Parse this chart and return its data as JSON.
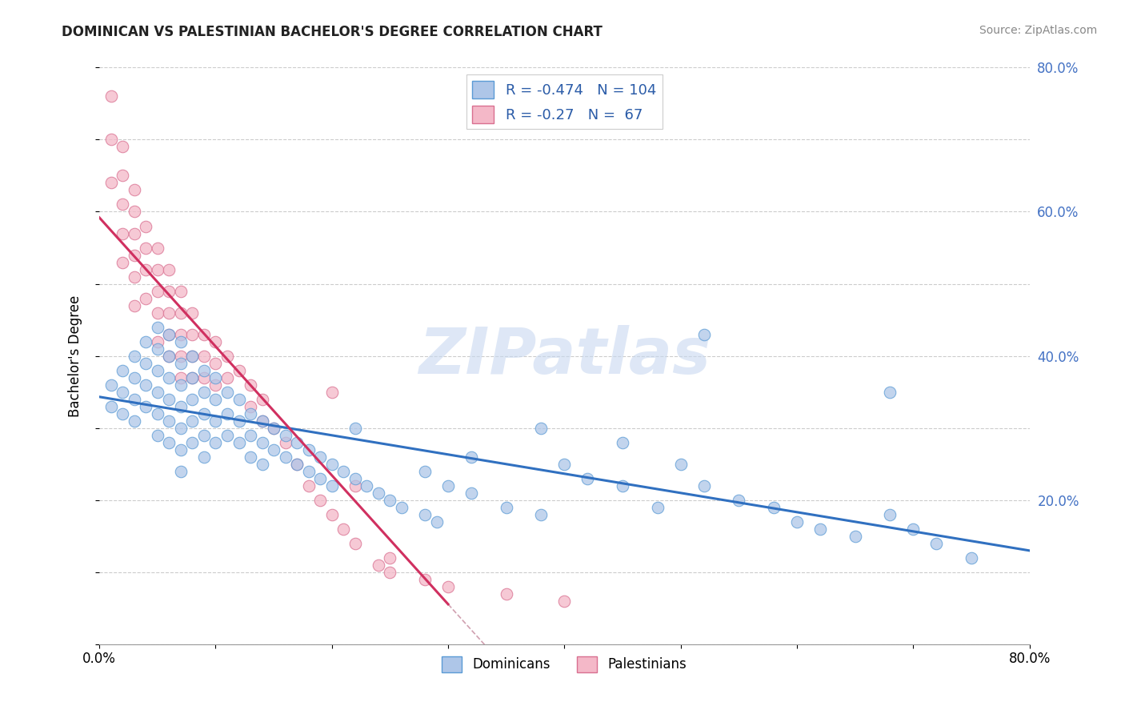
{
  "title": "DOMINICAN VS PALESTINIAN BACHELOR'S DEGREE CORRELATION CHART",
  "source": "Source: ZipAtlas.com",
  "ylabel": "Bachelor's Degree",
  "xlim": [
    0,
    0.8
  ],
  "ylim": [
    0,
    0.8
  ],
  "dominican_color": "#aec6e8",
  "dominican_edge": "#5b9bd5",
  "palestinian_color": "#f4b8c8",
  "palestinian_edge": "#d97090",
  "trend_dominican_color": "#3070c0",
  "trend_palestinian_color": "#d03060",
  "trend_palestinian_dash_color": "#d0a0b0",
  "R_dominican": -0.474,
  "N_dominican": 104,
  "R_palestinian": -0.27,
  "N_palestinian": 67,
  "watermark": "ZIPatlas",
  "legend_dominican": "Dominicans",
  "legend_palestinian": "Palestinians",
  "dominican_x": [
    0.01,
    0.01,
    0.02,
    0.02,
    0.02,
    0.03,
    0.03,
    0.03,
    0.03,
    0.04,
    0.04,
    0.04,
    0.04,
    0.05,
    0.05,
    0.05,
    0.05,
    0.05,
    0.05,
    0.06,
    0.06,
    0.06,
    0.06,
    0.06,
    0.06,
    0.07,
    0.07,
    0.07,
    0.07,
    0.07,
    0.07,
    0.07,
    0.08,
    0.08,
    0.08,
    0.08,
    0.08,
    0.09,
    0.09,
    0.09,
    0.09,
    0.09,
    0.1,
    0.1,
    0.1,
    0.1,
    0.11,
    0.11,
    0.11,
    0.12,
    0.12,
    0.12,
    0.13,
    0.13,
    0.13,
    0.14,
    0.14,
    0.14,
    0.15,
    0.15,
    0.16,
    0.16,
    0.17,
    0.17,
    0.18,
    0.18,
    0.19,
    0.19,
    0.2,
    0.2,
    0.21,
    0.22,
    0.23,
    0.24,
    0.25,
    0.26,
    0.28,
    0.29,
    0.3,
    0.32,
    0.35,
    0.38,
    0.4,
    0.42,
    0.45,
    0.48,
    0.5,
    0.52,
    0.55,
    0.58,
    0.6,
    0.62,
    0.65,
    0.68,
    0.7,
    0.72,
    0.75,
    0.68,
    0.52,
    0.45,
    0.38,
    0.32,
    0.28,
    0.22
  ],
  "dominican_y": [
    0.36,
    0.33,
    0.38,
    0.35,
    0.32,
    0.4,
    0.37,
    0.34,
    0.31,
    0.42,
    0.39,
    0.36,
    0.33,
    0.44,
    0.41,
    0.38,
    0.35,
    0.32,
    0.29,
    0.43,
    0.4,
    0.37,
    0.34,
    0.31,
    0.28,
    0.42,
    0.39,
    0.36,
    0.33,
    0.3,
    0.27,
    0.24,
    0.4,
    0.37,
    0.34,
    0.31,
    0.28,
    0.38,
    0.35,
    0.32,
    0.29,
    0.26,
    0.37,
    0.34,
    0.31,
    0.28,
    0.35,
    0.32,
    0.29,
    0.34,
    0.31,
    0.28,
    0.32,
    0.29,
    0.26,
    0.31,
    0.28,
    0.25,
    0.3,
    0.27,
    0.29,
    0.26,
    0.28,
    0.25,
    0.27,
    0.24,
    0.26,
    0.23,
    0.25,
    0.22,
    0.24,
    0.23,
    0.22,
    0.21,
    0.2,
    0.19,
    0.18,
    0.17,
    0.22,
    0.21,
    0.19,
    0.18,
    0.25,
    0.23,
    0.22,
    0.19,
    0.25,
    0.22,
    0.2,
    0.19,
    0.17,
    0.16,
    0.15,
    0.18,
    0.16,
    0.14,
    0.12,
    0.35,
    0.43,
    0.28,
    0.3,
    0.26,
    0.24,
    0.3
  ],
  "palestinian_x": [
    0.01,
    0.01,
    0.01,
    0.02,
    0.02,
    0.02,
    0.02,
    0.02,
    0.03,
    0.03,
    0.03,
    0.03,
    0.03,
    0.03,
    0.04,
    0.04,
    0.04,
    0.04,
    0.05,
    0.05,
    0.05,
    0.05,
    0.05,
    0.06,
    0.06,
    0.06,
    0.06,
    0.06,
    0.07,
    0.07,
    0.07,
    0.07,
    0.07,
    0.08,
    0.08,
    0.08,
    0.08,
    0.09,
    0.09,
    0.09,
    0.1,
    0.1,
    0.1,
    0.11,
    0.11,
    0.12,
    0.13,
    0.13,
    0.14,
    0.14,
    0.15,
    0.16,
    0.17,
    0.18,
    0.19,
    0.2,
    0.21,
    0.22,
    0.24,
    0.25,
    0.28,
    0.3,
    0.35,
    0.4,
    0.2,
    0.22,
    0.25
  ],
  "palestinian_y": [
    0.76,
    0.7,
    0.64,
    0.69,
    0.65,
    0.61,
    0.57,
    0.53,
    0.63,
    0.6,
    0.57,
    0.54,
    0.51,
    0.47,
    0.58,
    0.55,
    0.52,
    0.48,
    0.55,
    0.52,
    0.49,
    0.46,
    0.42,
    0.52,
    0.49,
    0.46,
    0.43,
    0.4,
    0.49,
    0.46,
    0.43,
    0.4,
    0.37,
    0.46,
    0.43,
    0.4,
    0.37,
    0.43,
    0.4,
    0.37,
    0.42,
    0.39,
    0.36,
    0.4,
    0.37,
    0.38,
    0.36,
    0.33,
    0.34,
    0.31,
    0.3,
    0.28,
    0.25,
    0.22,
    0.2,
    0.18,
    0.16,
    0.14,
    0.11,
    0.1,
    0.09,
    0.08,
    0.07,
    0.06,
    0.35,
    0.22,
    0.12
  ]
}
